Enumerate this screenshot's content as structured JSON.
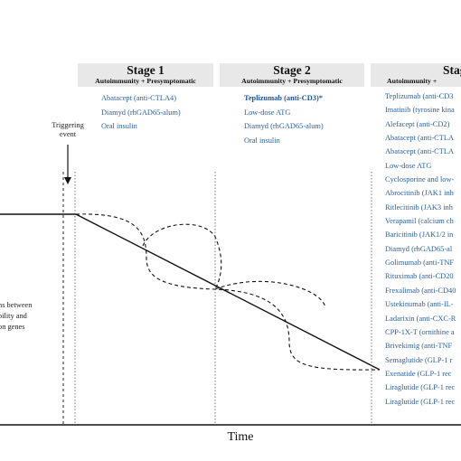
{
  "stages": [
    {
      "title": "Stage 1",
      "subtitle": "Autoimmunity + Presymptomatic",
      "drugs": [
        "Abatacept (anti-CTLA4)",
        "Diamyd (rhGAD65-alum)",
        "Oral insulin"
      ]
    },
    {
      "title": "Stage 2",
      "subtitle": "Autoimmunity + Presymptomatic",
      "drugs": [
        "Teplizumab (anti-CD3)*",
        "Low-dose ATG",
        "Diamyd (rhGAD65-alum)",
        "Oral insulin"
      ]
    },
    {
      "title": "Stag",
      "subtitle": "Autoimmunity +",
      "drugs": [
        "Teplizumab (anti-CD3",
        "Imatinib (tyrosine kina",
        "Alefacept (anti-CD2)",
        "Abatacept (anti-CTLA",
        "Abatacept (anti-CTLA",
        "Low-dose ATG",
        "Cyclosporine and low-",
        "Abrocitinib (JAK1 inh",
        "Ritlecitinib (JAK3 inh",
        "Verapamil (calcium ch",
        "Baricitinib (JAK1/2 in",
        "Diamyd (rhGAD65-al",
        "Golimumab (anti-TNF",
        "Rituximab (anti-CD20",
        "Frexalimab (anti-CD40",
        "Ustekinumab (anti-IL-",
        "Ladarixin (anti-CXC-R",
        "CPP-1X-T (ornithine a",
        "Brivekimig (anti-TNF",
        "Semaglutide (GLP-1 r",
        "Exenatide (GLP-1 rec",
        "Liraglutide (GLP-1 rec",
        "Liraglutide (GLP-1 rec"
      ]
    }
  ],
  "trigger_label": [
    "Triggering",
    "event"
  ],
  "left_labels": [
    "ns between",
    "bility and",
    "on genes"
  ],
  "x_axis_label": "Time"
}
